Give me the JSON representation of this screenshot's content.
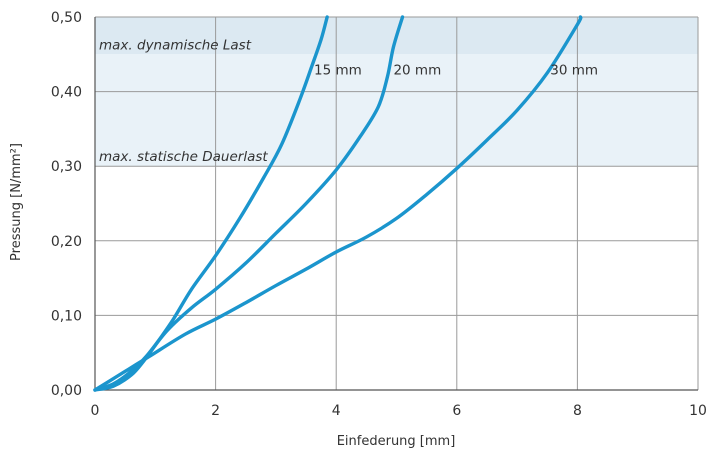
{
  "chart_data": {
    "type": "line",
    "xlabel": "Einfederung [mm]",
    "ylabel": "Pressung [N/mm²]",
    "xlim": [
      0,
      10
    ],
    "ylim": [
      0,
      0.5
    ],
    "x_ticks": [
      "0",
      "2",
      "4",
      "6",
      "8",
      "10"
    ],
    "y_ticks": [
      "0,00",
      "0,10",
      "0,20",
      "0,30",
      "0,40",
      "0,50"
    ],
    "grid": true,
    "bands": [
      {
        "label": "max. dynamische Last",
        "from": 0.45,
        "to": 0.5,
        "color": "#dce9f2"
      },
      {
        "label": "max. statische Dauerlast",
        "from": 0.3,
        "to": 0.45,
        "color": "#e9f2f8"
      }
    ],
    "series": [
      {
        "name": "15 mm",
        "color": "#1b95cd",
        "points": [
          [
            0,
            0
          ],
          [
            0.3,
            0.005
          ],
          [
            0.6,
            0.02
          ],
          [
            0.8,
            0.038
          ],
          [
            1.0,
            0.06
          ],
          [
            1.3,
            0.095
          ],
          [
            1.6,
            0.135
          ],
          [
            2.0,
            0.18
          ],
          [
            2.4,
            0.23
          ],
          [
            2.8,
            0.285
          ],
          [
            3.1,
            0.33
          ],
          [
            3.4,
            0.39
          ],
          [
            3.6,
            0.435
          ],
          [
            3.75,
            0.47
          ],
          [
            3.85,
            0.5
          ]
        ]
      },
      {
        "name": "20 mm",
        "color": "#1b95cd",
        "points": [
          [
            0,
            0
          ],
          [
            0.3,
            0.008
          ],
          [
            0.6,
            0.025
          ],
          [
            0.85,
            0.045
          ],
          [
            1.2,
            0.08
          ],
          [
            1.6,
            0.11
          ],
          [
            2.0,
            0.135
          ],
          [
            2.5,
            0.17
          ],
          [
            3.0,
            0.21
          ],
          [
            3.5,
            0.25
          ],
          [
            4.0,
            0.295
          ],
          [
            4.4,
            0.34
          ],
          [
            4.7,
            0.38
          ],
          [
            4.85,
            0.42
          ],
          [
            4.95,
            0.46
          ],
          [
            5.1,
            0.5
          ]
        ]
      },
      {
        "name": "30 mm",
        "color": "#1b95cd",
        "points": [
          [
            0,
            0
          ],
          [
            0.5,
            0.025
          ],
          [
            0.9,
            0.045
          ],
          [
            1.5,
            0.075
          ],
          [
            2.0,
            0.095
          ],
          [
            2.5,
            0.117
          ],
          [
            3.0,
            0.14
          ],
          [
            3.5,
            0.162
          ],
          [
            4.0,
            0.185
          ],
          [
            4.5,
            0.205
          ],
          [
            5.0,
            0.23
          ],
          [
            5.5,
            0.262
          ],
          [
            6.0,
            0.297
          ],
          [
            6.5,
            0.335
          ],
          [
            7.0,
            0.375
          ],
          [
            7.5,
            0.425
          ],
          [
            8.0,
            0.49
          ],
          [
            8.05,
            0.5
          ]
        ]
      }
    ]
  }
}
